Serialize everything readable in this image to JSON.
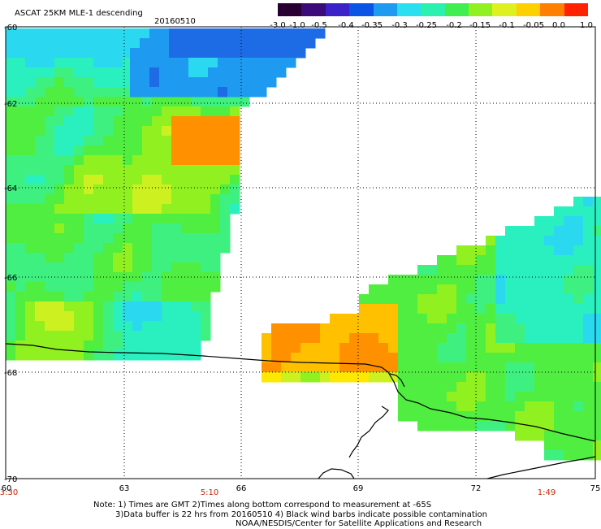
{
  "header": {
    "product": "ASCAT 25KM MLE-1 descending",
    "date": "20160510"
  },
  "colorbar": {
    "tick_labels": [
      "-3.0",
      "-1.0",
      "-0.5",
      "-0.4",
      "-0.35",
      "-0.3",
      "-0.25",
      "-0.2",
      "-0.15",
      "-0.1",
      "-0.05",
      "0.0",
      "1.0"
    ],
    "colors": [
      "#2a0033",
      "#3d0a7a",
      "#3a22c8",
      "#0a55e6",
      "#1e9bf0",
      "#2ae0f0",
      "#2af0b0",
      "#40ee50",
      "#90f020",
      "#dff020",
      "#ffd000",
      "#ff8000",
      "#ff2200"
    ]
  },
  "map": {
    "lat_labels": [
      "-60",
      "-62",
      "-64",
      "-66",
      "-68",
      "-70"
    ],
    "lon_labels": [
      "60",
      "63",
      "66",
      "69",
      "72",
      "75"
    ],
    "time_labels": [
      "3:30",
      "5:10",
      "1:49"
    ],
    "coastline_color": "#000000",
    "time_label_color": "#cc2200"
  },
  "notes": {
    "line1": "Note: 1) Times are GMT 2)Times along bottom correspond to measurement at -65S",
    "line2": "3)Data buffer is 22 hrs from 20160510 4) Black wind barbs indicate possible contamination",
    "line3": "NOAA/NESDIS/Center for Satellite Applications and Research"
  }
}
